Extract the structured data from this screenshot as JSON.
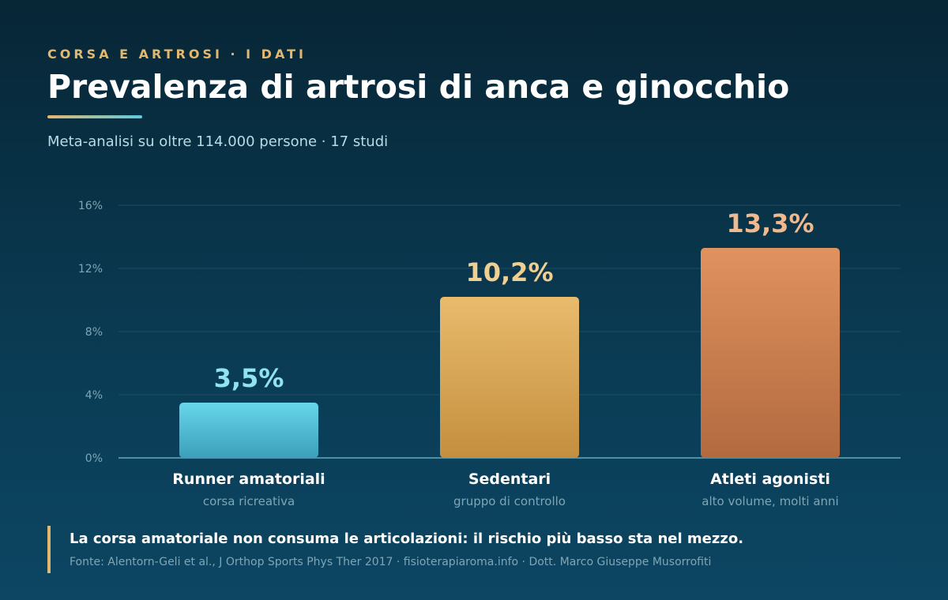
{
  "header": {
    "eyebrow": "CORSA E ARTROSI · I DATI",
    "title": "Prevalenza di artrosi di anca e ginocchio",
    "subtitle": "Meta-analisi su oltre 114.000 persone · 17 studi"
  },
  "chart_data": {
    "type": "bar",
    "categories": [
      "Runner amatoriali",
      "Sedentari",
      "Atleti agonisti"
    ],
    "category_sublabels": [
      "corsa ricreativa",
      "gruppo di controllo",
      "alto volume, molti anni"
    ],
    "values": [
      3.5,
      10.2,
      13.3
    ],
    "value_labels": [
      "3,5%",
      "10,2%",
      "13,3%"
    ],
    "yticks": [
      0,
      4,
      8,
      12,
      16
    ],
    "ytick_labels": [
      "0%",
      "4%",
      "8%",
      "12%",
      "16%"
    ],
    "ylim": [
      0,
      16
    ],
    "grid": true,
    "xlabel": "",
    "ylabel": "",
    "colors": {
      "bars_top": [
        "#67d6ea",
        "#e9bb6c",
        "#e0925f"
      ],
      "bars_bottom": [
        "#3c9fbb",
        "#c48f3f",
        "#b26a3f"
      ],
      "value_labels": [
        "#8fe3f2",
        "#f0cf92",
        "#f0b98e"
      ]
    }
  },
  "footer": {
    "note": "La corsa amatoriale non consuma le articolazioni: il rischio più basso sta nel mezzo.",
    "source": "Fonte: Alentorn-Geli et al., J Orthop Sports Phys Ther 2017 · fisioterapiaroma.info · Dott. Marco Giuseppe Musorrofiti"
  }
}
